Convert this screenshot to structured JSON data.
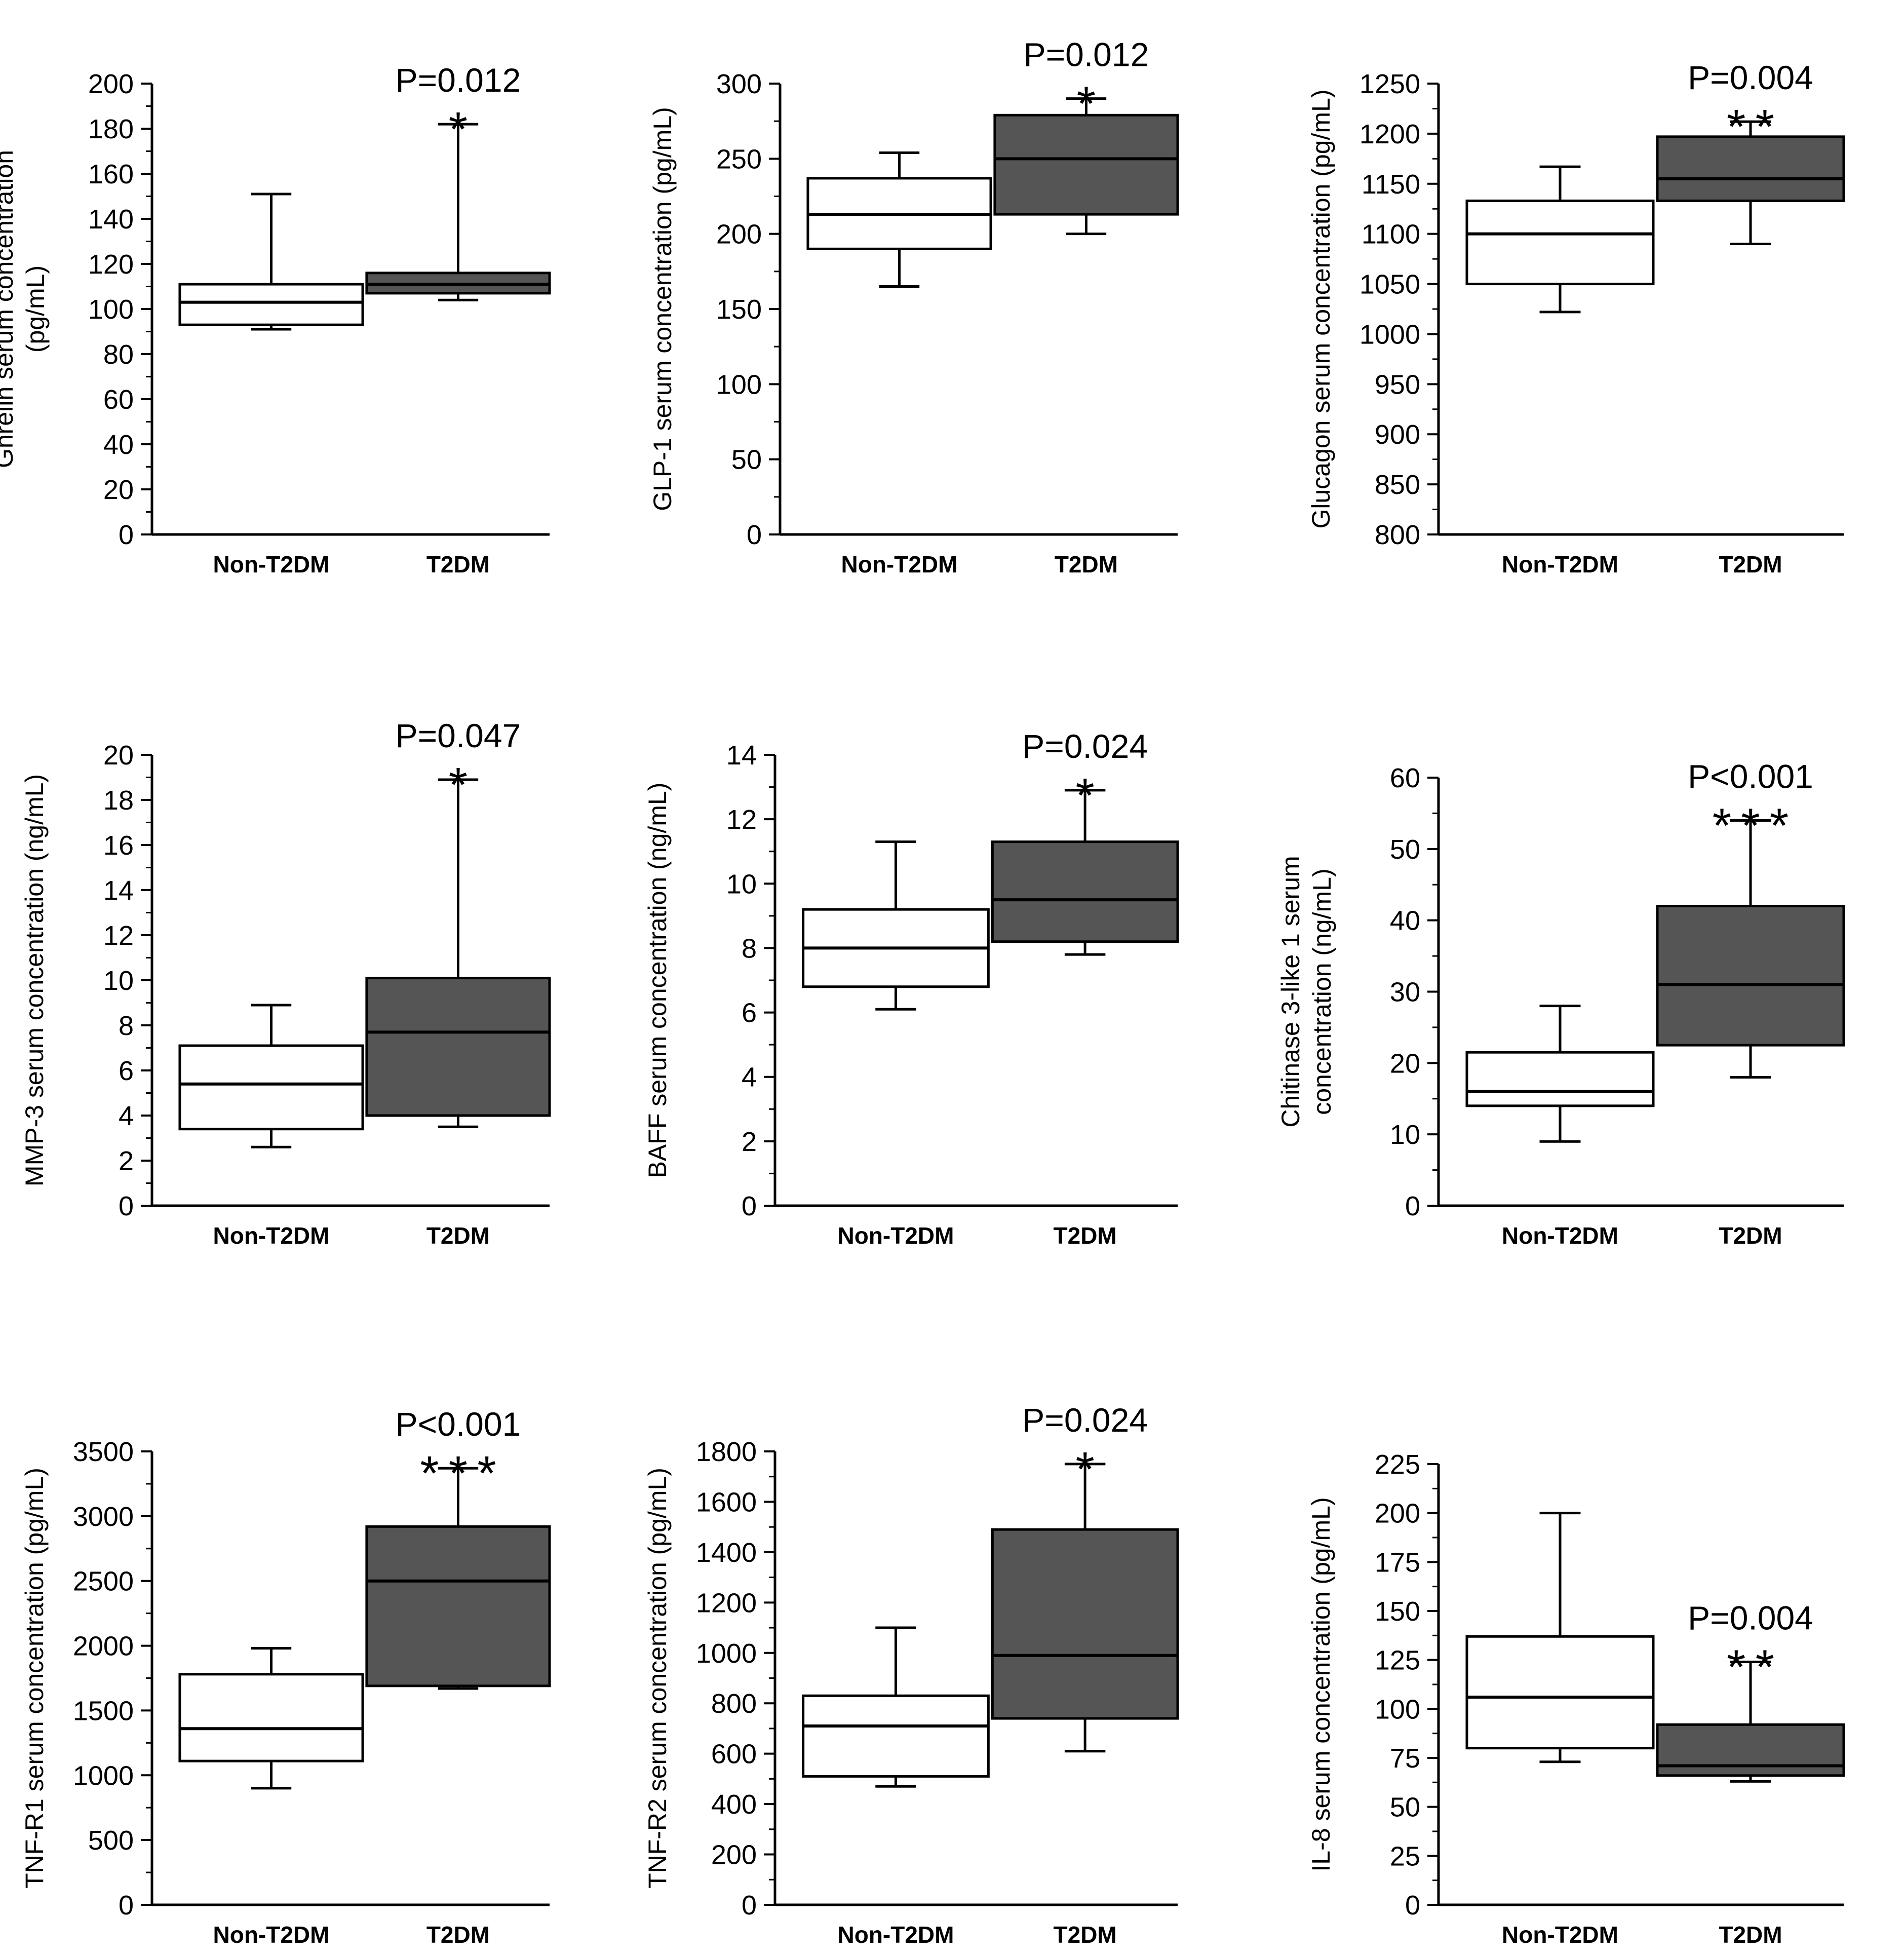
{
  "colors": {
    "non_t2dm_box": "#ffffff",
    "t2dm_box": "#555555",
    "line": "#000000"
  },
  "chart_data": [
    {
      "type": "box",
      "ylabel_lines": [
        "Ghrelin serum concentration",
        "(pg/mL)"
      ],
      "ylim": [
        0,
        200
      ],
      "yticks": [
        0,
        20,
        40,
        60,
        80,
        100,
        120,
        140,
        160,
        180,
        200
      ],
      "categories": [
        "Non-T2DM",
        "T2DM"
      ],
      "series": [
        {
          "name": "Non-T2DM",
          "whisker_low": 91,
          "q1": 93,
          "median": 103,
          "q3": 111,
          "whisker_high": 151
        },
        {
          "name": "T2DM",
          "whisker_low": 104,
          "q1": 107,
          "median": 111,
          "q3": 116,
          "whisker_high": 182
        }
      ],
      "annotation": {
        "text": "P=0.012",
        "stars": "*",
        "target": 1
      }
    },
    {
      "type": "box",
      "ylabel_lines": [
        "GLP-1 serum concentration (pg/mL)"
      ],
      "ylim": [
        0,
        300
      ],
      "yticks": [
        0,
        50,
        100,
        150,
        200,
        250,
        300
      ],
      "categories": [
        "Non-T2DM",
        "T2DM"
      ],
      "series": [
        {
          "name": "Non-T2DM",
          "whisker_low": 165,
          "q1": 190,
          "median": 213,
          "q3": 237,
          "whisker_high": 254
        },
        {
          "name": "T2DM",
          "whisker_low": 200,
          "q1": 213,
          "median": 250,
          "q3": 279,
          "whisker_high": 290
        }
      ],
      "annotation": {
        "text": "P=0.012",
        "stars": "*",
        "target": 1
      }
    },
    {
      "type": "box",
      "ylabel_lines": [
        "Glucagon serum concentration (pg/mL)"
      ],
      "ylim": [
        800,
        1250
      ],
      "yticks": [
        800,
        850,
        900,
        950,
        1000,
        1050,
        1100,
        1150,
        1200,
        1250
      ],
      "categories": [
        "Non-T2DM",
        "T2DM"
      ],
      "series": [
        {
          "name": "Non-T2DM",
          "whisker_low": 1022,
          "q1": 1050,
          "median": 1100,
          "q3": 1133,
          "whisker_high": 1167
        },
        {
          "name": "T2DM",
          "whisker_low": 1090,
          "q1": 1133,
          "median": 1155,
          "q3": 1197,
          "whisker_high": 1212
        }
      ],
      "annotation": {
        "text": "P=0.004",
        "stars": "**",
        "target": 1
      }
    },
    {
      "type": "box",
      "ylabel_lines": [
        "MMP-3 serum concentration (ng/mL)"
      ],
      "ylim": [
        0,
        20
      ],
      "yticks": [
        0,
        2,
        4,
        6,
        8,
        10,
        12,
        14,
        16,
        18,
        20
      ],
      "categories": [
        "Non-T2DM",
        "T2DM"
      ],
      "series": [
        {
          "name": "Non-T2DM",
          "whisker_low": 2.6,
          "q1": 3.4,
          "median": 5.4,
          "q3": 7.1,
          "whisker_high": 8.9
        },
        {
          "name": "T2DM",
          "whisker_low": 3.5,
          "q1": 4.0,
          "median": 7.7,
          "q3": 10.1,
          "whisker_high": 18.9
        }
      ],
      "annotation": {
        "text": "P=0.047",
        "stars": "*",
        "target": 1
      }
    },
    {
      "type": "box",
      "ylabel_lines": [
        "BAFF serum concentration (ng/mL)"
      ],
      "ylim": [
        0,
        14
      ],
      "yticks": [
        0,
        2,
        4,
        6,
        8,
        10,
        12,
        14
      ],
      "categories": [
        "Non-T2DM",
        "T2DM"
      ],
      "series": [
        {
          "name": "Non-T2DM",
          "whisker_low": 6.1,
          "q1": 6.8,
          "median": 8.0,
          "q3": 9.2,
          "whisker_high": 11.3
        },
        {
          "name": "T2DM",
          "whisker_low": 7.8,
          "q1": 8.2,
          "median": 9.5,
          "q3": 11.3,
          "whisker_high": 12.9
        }
      ],
      "annotation": {
        "text": "P=0.024",
        "stars": "*",
        "target": 1
      }
    },
    {
      "type": "box",
      "ylabel_lines": [
        "Chitinase 3-like 1 serum",
        "concentration (ng/mL)"
      ],
      "ylim": [
        0,
        60
      ],
      "yticks": [
        0,
        10,
        20,
        30,
        40,
        50,
        60
      ],
      "categories": [
        "Non-T2DM",
        "T2DM"
      ],
      "series": [
        {
          "name": "Non-T2DM",
          "whisker_low": 9,
          "q1": 14,
          "median": 16,
          "q3": 21.5,
          "whisker_high": 28
        },
        {
          "name": "T2DM",
          "whisker_low": 18,
          "q1": 22.5,
          "median": 31,
          "q3": 42,
          "whisker_high": 54
        }
      ],
      "annotation": {
        "text": "P<0.001",
        "stars": "***",
        "target": 1
      }
    },
    {
      "type": "box",
      "ylabel_lines": [
        "TNF-R1 serum concentration (pg/mL)"
      ],
      "ylim": [
        0,
        3500
      ],
      "yticks": [
        0,
        500,
        1000,
        1500,
        2000,
        2500,
        3000,
        3500
      ],
      "categories": [
        "Non-T2DM",
        "T2DM"
      ],
      "series": [
        {
          "name": "Non-T2DM",
          "whisker_low": 900,
          "q1": 1110,
          "median": 1360,
          "q3": 1780,
          "whisker_high": 1980
        },
        {
          "name": "T2DM",
          "whisker_low": 1670,
          "q1": 1690,
          "median": 2500,
          "q3": 2920,
          "whisker_high": 3370
        }
      ],
      "annotation": {
        "text": "P<0.001",
        "stars": "***",
        "target": 1
      }
    },
    {
      "type": "box",
      "ylabel_lines": [
        "TNF-R2 serum concentration (pg/mL)"
      ],
      "ylim": [
        0,
        1800
      ],
      "yticks": [
        0,
        200,
        400,
        600,
        800,
        1000,
        1200,
        1400,
        1600,
        1800
      ],
      "categories": [
        "Non-T2DM",
        "T2DM"
      ],
      "series": [
        {
          "name": "Non-T2DM",
          "whisker_low": 470,
          "q1": 510,
          "median": 710,
          "q3": 830,
          "whisker_high": 1100
        },
        {
          "name": "T2DM",
          "whisker_low": 610,
          "q1": 740,
          "median": 990,
          "q3": 1490,
          "whisker_high": 1750
        }
      ],
      "annotation": {
        "text": "P=0.024",
        "stars": "*",
        "target": 1
      }
    },
    {
      "type": "box",
      "ylabel_lines": [
        "IL-8 serum concentration (pg/mL)"
      ],
      "ylim": [
        0,
        225
      ],
      "yticks": [
        0,
        25,
        50,
        75,
        100,
        125,
        150,
        175,
        200,
        225
      ],
      "categories": [
        "Non-T2DM",
        "T2DM"
      ],
      "series": [
        {
          "name": "Non-T2DM",
          "whisker_low": 73,
          "q1": 80,
          "median": 106,
          "q3": 137,
          "whisker_high": 200
        },
        {
          "name": "T2DM",
          "whisker_low": 63,
          "q1": 66,
          "median": 71,
          "q3": 92,
          "whisker_high": 124
        }
      ],
      "annotation": {
        "text": "P=0.004",
        "stars": "**",
        "target": 1
      }
    }
  ]
}
